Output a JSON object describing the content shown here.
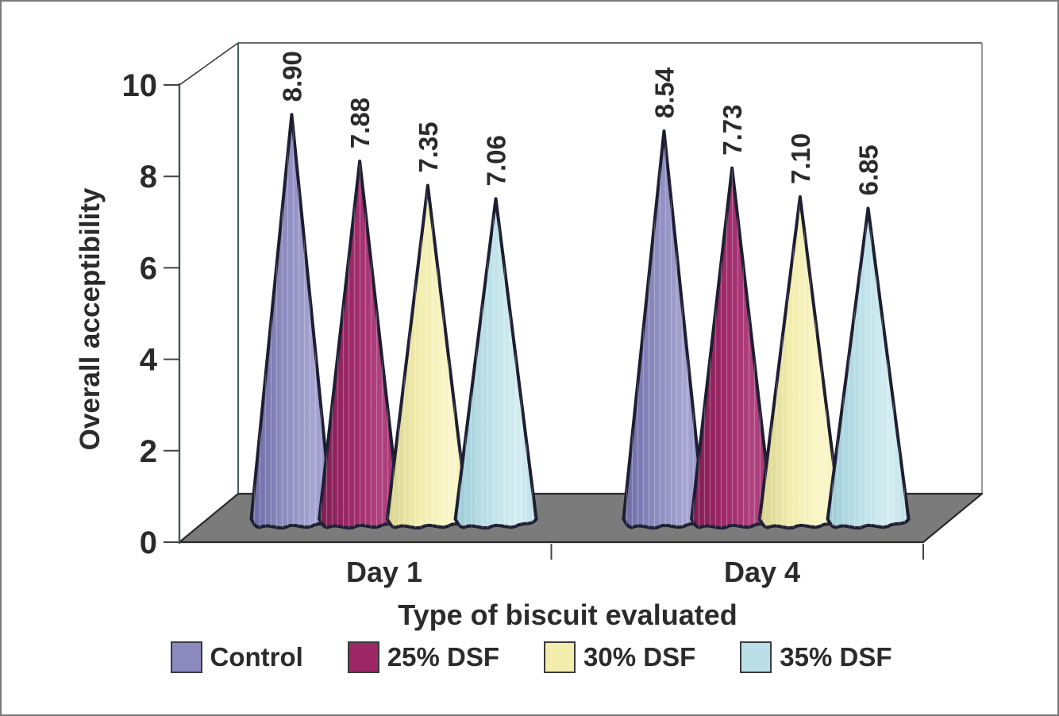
{
  "figure_type": "scanned 3D cone chart",
  "chart_data": {
    "type": "bar",
    "subtype": "3d-cone",
    "title": "",
    "xlabel": "Type of biscuit evaluated",
    "ylabel": "Overall acceptibility",
    "categories": [
      "Day 1",
      "Day 4"
    ],
    "series": [
      {
        "name": "Control",
        "values": [
          8.9,
          8.54
        ],
        "labels": [
          "8.90",
          "8.54"
        ],
        "color": "#8b89bd",
        "color_dark": "#6b69a4",
        "color_light": "#a8a6d2"
      },
      {
        "name": "25% DSF",
        "values": [
          7.88,
          7.73
        ],
        "labels": [
          "7.88",
          "7.73"
        ],
        "color": "#9d2766",
        "color_dark": "#7e1c52",
        "color_light": "#b14381"
      },
      {
        "name": "30% DSF",
        "values": [
          7.35,
          7.1
        ],
        "labels": [
          "7.35",
          "7.10"
        ],
        "color": "#f2edad",
        "color_dark": "#d7d08e",
        "color_light": "#faf6ca"
      },
      {
        "name": "35% DSF",
        "values": [
          7.06,
          6.85
        ],
        "labels": [
          "7.06",
          "6.85"
        ],
        "color": "#badfe6",
        "color_dark": "#9bcad5",
        "color_light": "#d4edf1"
      }
    ],
    "ylim": [
      0,
      10
    ],
    "yticks": [
      0,
      2,
      4,
      6,
      8,
      10
    ],
    "grid": false,
    "legend_position": "bottom",
    "value_label_rotation_deg": 90
  },
  "colors": {
    "text": "#2b2b2b",
    "floor": "#7b7b7b",
    "floor_edge": "#2b2b2b",
    "cone_outline": "#1e1e32",
    "axis_front": "#3f5a5a",
    "axis_back": "#44605f",
    "box_top": "#383838",
    "box_right": "#9b9b9b",
    "tick": "#444444",
    "page_border": "#7a7a7a",
    "background": "#ffffff"
  }
}
